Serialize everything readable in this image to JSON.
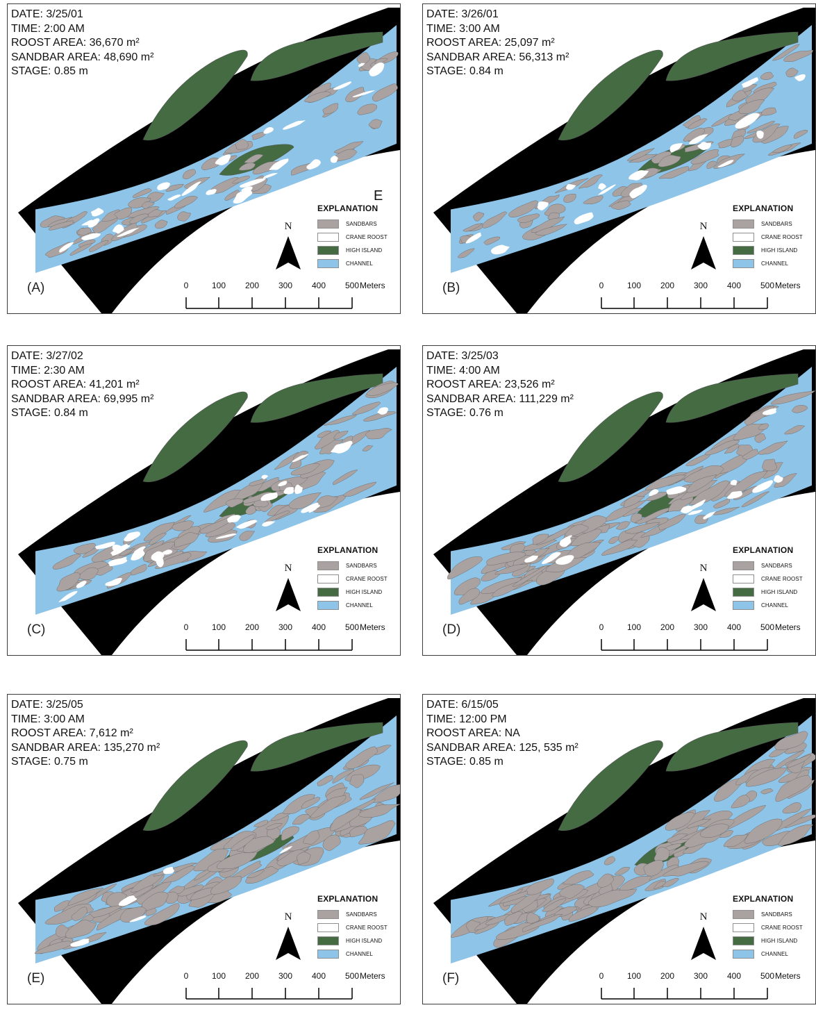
{
  "colors": {
    "sandbar": "#aaa2a1",
    "crane_roost": "#ffffff",
    "high_island": "#446b42",
    "channel": "#8ec4e8",
    "bank": "#000000"
  },
  "north_label": "N",
  "legend": {
    "title": "EXPLANATION",
    "items": [
      {
        "label": "SANDBARS",
        "color": "#aaa2a1"
      },
      {
        "label": "CRANE ROOST",
        "color": "#ffffff"
      },
      {
        "label": "HIGH ISLAND",
        "color": "#446b42"
      },
      {
        "label": "CHANNEL",
        "color": "#8ec4e8"
      }
    ]
  },
  "scale_bar": {
    "ticks": [
      "0",
      "100",
      "200",
      "300",
      "400",
      "500"
    ],
    "units": "Meters"
  },
  "panels": [
    {
      "label": "(A)",
      "date": "DATE: 3/25/01",
      "time": "TIME: 2:00 AM",
      "roost": "ROOST AREA: 36,670 m²",
      "sandbar": "SANDBAR AREA: 48,690 m²",
      "stage": "STAGE: 0.85 m",
      "corner_letter": "E",
      "sand": 0.3,
      "roost_frac": 0.55
    },
    {
      "label": "(B)",
      "date": "DATE: 3/26/01",
      "time": "TIME: 3:00 AM",
      "roost": "ROOST AREA: 25,097 m²",
      "sandbar": "SANDBAR AREA: 56,313 m²",
      "stage": "STAGE: 0.84 m",
      "corner_letter": "",
      "sand": 0.35,
      "roost_frac": 0.4
    },
    {
      "label": "(C)",
      "date": "DATE: 3/27/02",
      "time": "TIME: 2:30 AM",
      "roost": "ROOST AREA: 41,201 m²",
      "sandbar": "SANDBAR AREA: 69,995 m²",
      "stage": "STAGE: 0.84 m",
      "corner_letter": "",
      "sand": 0.5,
      "roost_frac": 0.6
    },
    {
      "label": "(D)",
      "date": "DATE: 3/25/03",
      "time": "TIME: 4:00 AM",
      "roost": "ROOST AREA: 23,526 m²",
      "sandbar": "SANDBAR AREA: 111,229 m²",
      "stage": "STAGE: 0.76 m",
      "corner_letter": "",
      "sand": 0.72,
      "roost_frac": 0.35
    },
    {
      "label": "(E)",
      "date": "DATE: 3/25/05",
      "time": "TIME: 3:00 AM",
      "roost": "ROOST AREA: 7,612 m²",
      "sandbar": "SANDBAR AREA: 135,270 m²",
      "stage": "STAGE: 0.75 m",
      "corner_letter": "",
      "sand": 0.85,
      "roost_frac": 0.12
    },
    {
      "label": "(F)",
      "date": "DATE: 6/15/05",
      "time": "TIME: 12:00 PM",
      "roost": "ROOST AREA: NA",
      "sandbar": "SANDBAR AREA: 125, 535 m²",
      "stage": "STAGE: 0.85 m",
      "corner_letter": "",
      "sand": 0.8,
      "roost_frac": 0.0
    }
  ]
}
